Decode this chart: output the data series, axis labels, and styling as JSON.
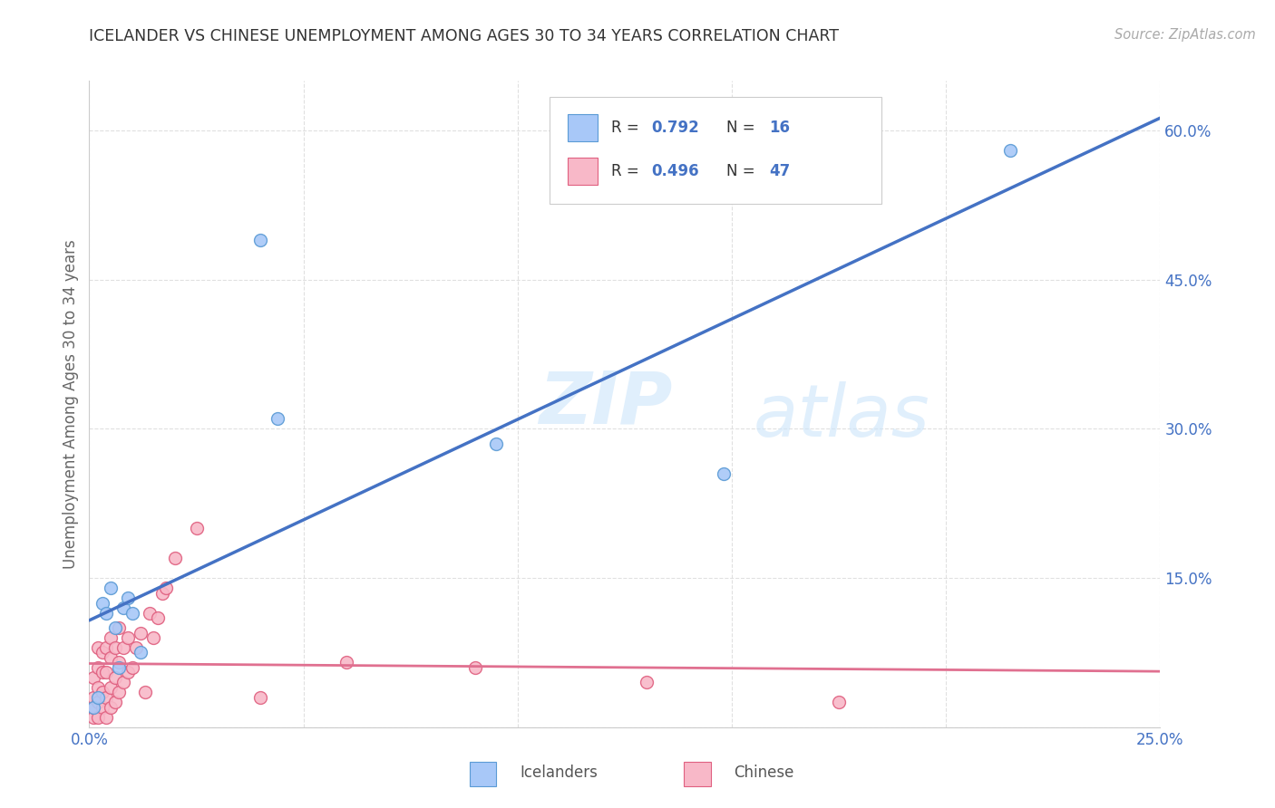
{
  "title": "ICELANDER VS CHINESE UNEMPLOYMENT AMONG AGES 30 TO 34 YEARS CORRELATION CHART",
  "source": "Source: ZipAtlas.com",
  "ylabel": "Unemployment Among Ages 30 to 34 years",
  "xlim": [
    0,
    0.25
  ],
  "ylim": [
    0,
    0.65
  ],
  "xticks": [
    0.0,
    0.05,
    0.1,
    0.15,
    0.2,
    0.25
  ],
  "yticks": [
    0.0,
    0.15,
    0.3,
    0.45,
    0.6
  ],
  "xtick_labels": [
    "0.0%",
    "",
    "",
    "",
    "",
    "25.0%"
  ],
  "ytick_labels": [
    "",
    "15.0%",
    "30.0%",
    "45.0%",
    "60.0%"
  ],
  "icelander_color": "#a8c8f8",
  "icelander_edge_color": "#5b9bd5",
  "chinese_color": "#f8b8c8",
  "chinese_edge_color": "#e06080",
  "icelander_line_color": "#4472c4",
  "chinese_line_color": "#e07090",
  "watermark_zip": "ZIP",
  "watermark_atlas": "atlas",
  "background_color": "#ffffff",
  "grid_color": "#dddddd",
  "marker_size": 100,
  "icelanders_x": [
    0.001,
    0.002,
    0.003,
    0.004,
    0.005,
    0.006,
    0.007,
    0.008,
    0.009,
    0.01,
    0.012,
    0.04,
    0.044,
    0.095,
    0.148,
    0.215
  ],
  "icelanders_y": [
    0.02,
    0.03,
    0.125,
    0.115,
    0.14,
    0.1,
    0.06,
    0.12,
    0.13,
    0.115,
    0.075,
    0.49,
    0.31,
    0.285,
    0.255,
    0.58
  ],
  "chinese_x": [
    0.001,
    0.001,
    0.001,
    0.001,
    0.002,
    0.002,
    0.002,
    0.002,
    0.002,
    0.003,
    0.003,
    0.003,
    0.003,
    0.004,
    0.004,
    0.004,
    0.004,
    0.005,
    0.005,
    0.005,
    0.005,
    0.006,
    0.006,
    0.006,
    0.007,
    0.007,
    0.007,
    0.008,
    0.008,
    0.009,
    0.009,
    0.01,
    0.011,
    0.012,
    0.013,
    0.014,
    0.015,
    0.016,
    0.017,
    0.018,
    0.02,
    0.025,
    0.04,
    0.06,
    0.09,
    0.13,
    0.175
  ],
  "chinese_y": [
    0.01,
    0.02,
    0.03,
    0.05,
    0.01,
    0.025,
    0.04,
    0.06,
    0.08,
    0.02,
    0.035,
    0.055,
    0.075,
    0.01,
    0.03,
    0.055,
    0.08,
    0.02,
    0.04,
    0.07,
    0.09,
    0.025,
    0.05,
    0.08,
    0.035,
    0.065,
    0.1,
    0.045,
    0.08,
    0.055,
    0.09,
    0.06,
    0.08,
    0.095,
    0.035,
    0.115,
    0.09,
    0.11,
    0.135,
    0.14,
    0.17,
    0.2,
    0.03,
    0.065,
    0.06,
    0.045,
    0.025
  ]
}
